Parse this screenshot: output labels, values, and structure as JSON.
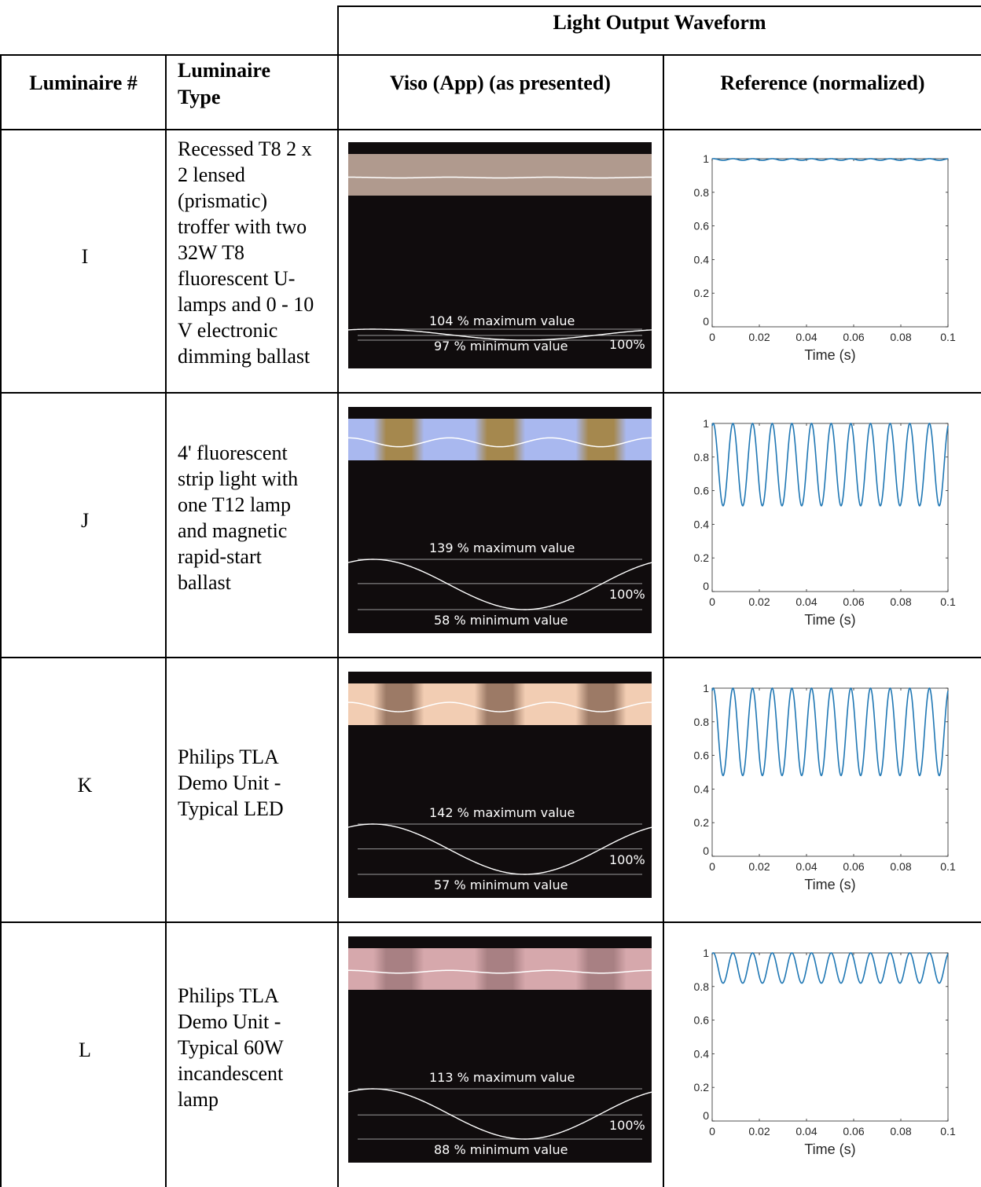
{
  "header": {
    "group_title": "Light Output Waveform",
    "col_luminaire_num": "Luminaire #",
    "col_luminaire_type_1": "Luminaire",
    "col_luminaire_type_2": "Type",
    "col_viso": "Viso (App) (as presented)",
    "col_reference": "Reference (normalized)"
  },
  "rows": [
    {
      "id": "I",
      "type_lines": [
        "Recessed T8 2 x",
        "2 lensed",
        "(prismatic)",
        "troffer with two",
        "32W T8",
        "fluorescent U-",
        "lamps and 0 - 10",
        "V electronic",
        "dimming ballast"
      ],
      "viso": {
        "max_label": "104 % maximum value",
        "min_label": "97 % minimum value",
        "pct_label": "100%",
        "max_pct": 104,
        "min_pct": 97,
        "band_color": "#b09a8e",
        "band_dark": "#b09a8e"
      }
    },
    {
      "id": "J",
      "type_lines": [
        "4' fluorescent",
        "strip light with",
        "one T12 lamp",
        "and magnetic",
        "rapid-start",
        "ballast"
      ],
      "viso": {
        "max_label": "139 % maximum value",
        "min_label": "58 % minimum value",
        "pct_label": "100%",
        "max_pct": 139,
        "min_pct": 58,
        "band_color": "#a9b8ef",
        "band_dark": "#a5884e"
      }
    },
    {
      "id": "K",
      "type_lines": [
        "Philips TLA",
        "Demo Unit -",
        "Typical LED"
      ],
      "viso": {
        "max_label": "142 % maximum value",
        "min_label": "57 % minimum value",
        "pct_label": "100%",
        "max_pct": 142,
        "min_pct": 57,
        "band_color": "#f2cdb3",
        "band_dark": "#9c7a66"
      }
    },
    {
      "id": "L",
      "type_lines": [
        "Philips TLA",
        "Demo Unit -",
        "Typical 60W",
        "incandescent",
        "lamp"
      ],
      "viso": {
        "max_label": "113 % maximum value",
        "min_label": "88 % minimum value",
        "pct_label": "100%",
        "max_pct": 113,
        "min_pct": 88,
        "band_color": "#d6a8ac",
        "band_dark": "#a88083"
      }
    }
  ],
  "chart_data": [
    {
      "type": "line",
      "panel": "I",
      "xlabel": "Time (s)",
      "ylabel": "",
      "xlim": [
        0,
        0.1
      ],
      "ylim": [
        0,
        1
      ],
      "x_ticks": [
        "0",
        "0.02",
        "0.04",
        "0.06",
        "0.08",
        "0.1"
      ],
      "y_ticks": [
        "0",
        "0.2",
        "0.4",
        "0.6",
        "0.8",
        "1"
      ],
      "series": [
        {
          "frequency_hz": 120,
          "min": 0.99,
          "max": 1.0,
          "color": "#1f77b4"
        }
      ]
    },
    {
      "type": "line",
      "panel": "J",
      "xlabel": "Time (s)",
      "ylabel": "",
      "xlim": [
        0,
        0.1
      ],
      "ylim": [
        0,
        1
      ],
      "x_ticks": [
        "0",
        "0.02",
        "0.04",
        "0.06",
        "0.08",
        "0.1"
      ],
      "y_ticks": [
        "0",
        "0.2",
        "0.4",
        "0.6",
        "0.8",
        "1"
      ],
      "series": [
        {
          "frequency_hz": 120,
          "min": 0.51,
          "max": 1.0,
          "color": "#1f77b4"
        }
      ]
    },
    {
      "type": "line",
      "panel": "K",
      "xlabel": "Time (s)",
      "ylabel": "",
      "xlim": [
        0,
        0.1
      ],
      "ylim": [
        0,
        1
      ],
      "x_ticks": [
        "0",
        "0.02",
        "0.04",
        "0.06",
        "0.08",
        "0.1"
      ],
      "y_ticks": [
        "0",
        "0.2",
        "0.4",
        "0.6",
        "0.8",
        "1"
      ],
      "series": [
        {
          "frequency_hz": 120,
          "min": 0.48,
          "max": 1.0,
          "color": "#1f77b4"
        }
      ]
    },
    {
      "type": "line",
      "panel": "L",
      "xlabel": "Time (s)",
      "ylabel": "",
      "xlim": [
        0,
        0.1
      ],
      "ylim": [
        0,
        1
      ],
      "x_ticks": [
        "0",
        "0.02",
        "0.04",
        "0.06",
        "0.08",
        "0.1"
      ],
      "y_ticks": [
        "0",
        "0.2",
        "0.4",
        "0.6",
        "0.8",
        "1"
      ],
      "series": [
        {
          "frequency_hz": 120,
          "min": 0.82,
          "max": 1.0,
          "color": "#1f77b4"
        }
      ]
    }
  ]
}
